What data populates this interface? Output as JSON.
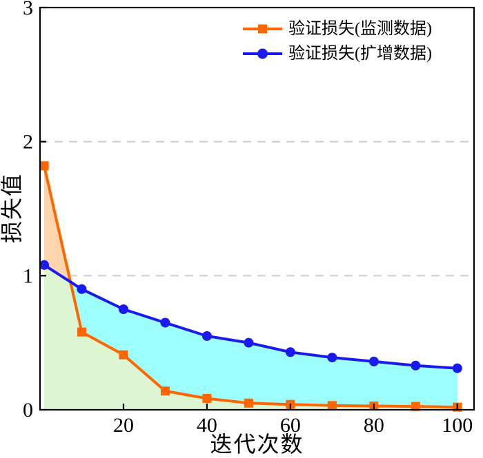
{
  "chart_data": {
    "type": "line",
    "title": "",
    "xlabel": "迭代次数",
    "ylabel": "损失值",
    "xlim": [
      0,
      104
    ],
    "ylim": [
      0,
      3
    ],
    "x_ticks": [
      20,
      40,
      60,
      80,
      100
    ],
    "y_ticks": [
      0,
      1,
      2,
      3
    ],
    "gridlines_y": [
      1,
      2
    ],
    "grid_color": "#c9c9c9",
    "grid_style": "dashed",
    "legend_position": "upper right",
    "x": [
      1,
      10,
      20,
      30,
      40,
      50,
      60,
      70,
      80,
      90,
      100
    ],
    "series": [
      {
        "name": "验证损失(监测数据)",
        "color": "#ff6600",
        "marker": "square",
        "values": [
          1.82,
          0.58,
          0.41,
          0.14,
          0.085,
          0.05,
          0.04,
          0.032,
          0.028,
          0.025,
          0.02
        ]
      },
      {
        "name": "验证损失(扩增数据)",
        "color": "#1a1aee",
        "marker": "circle",
        "values": [
          1.08,
          0.9,
          0.75,
          0.65,
          0.55,
          0.5,
          0.43,
          0.39,
          0.36,
          0.33,
          0.31
        ]
      }
    ],
    "fills": {
      "between_when_series0_on_top": "#fcd5ac",
      "between_when_series1_on_top": "#9dfefe",
      "under_lower_envelope": "#ddf5d0"
    }
  }
}
